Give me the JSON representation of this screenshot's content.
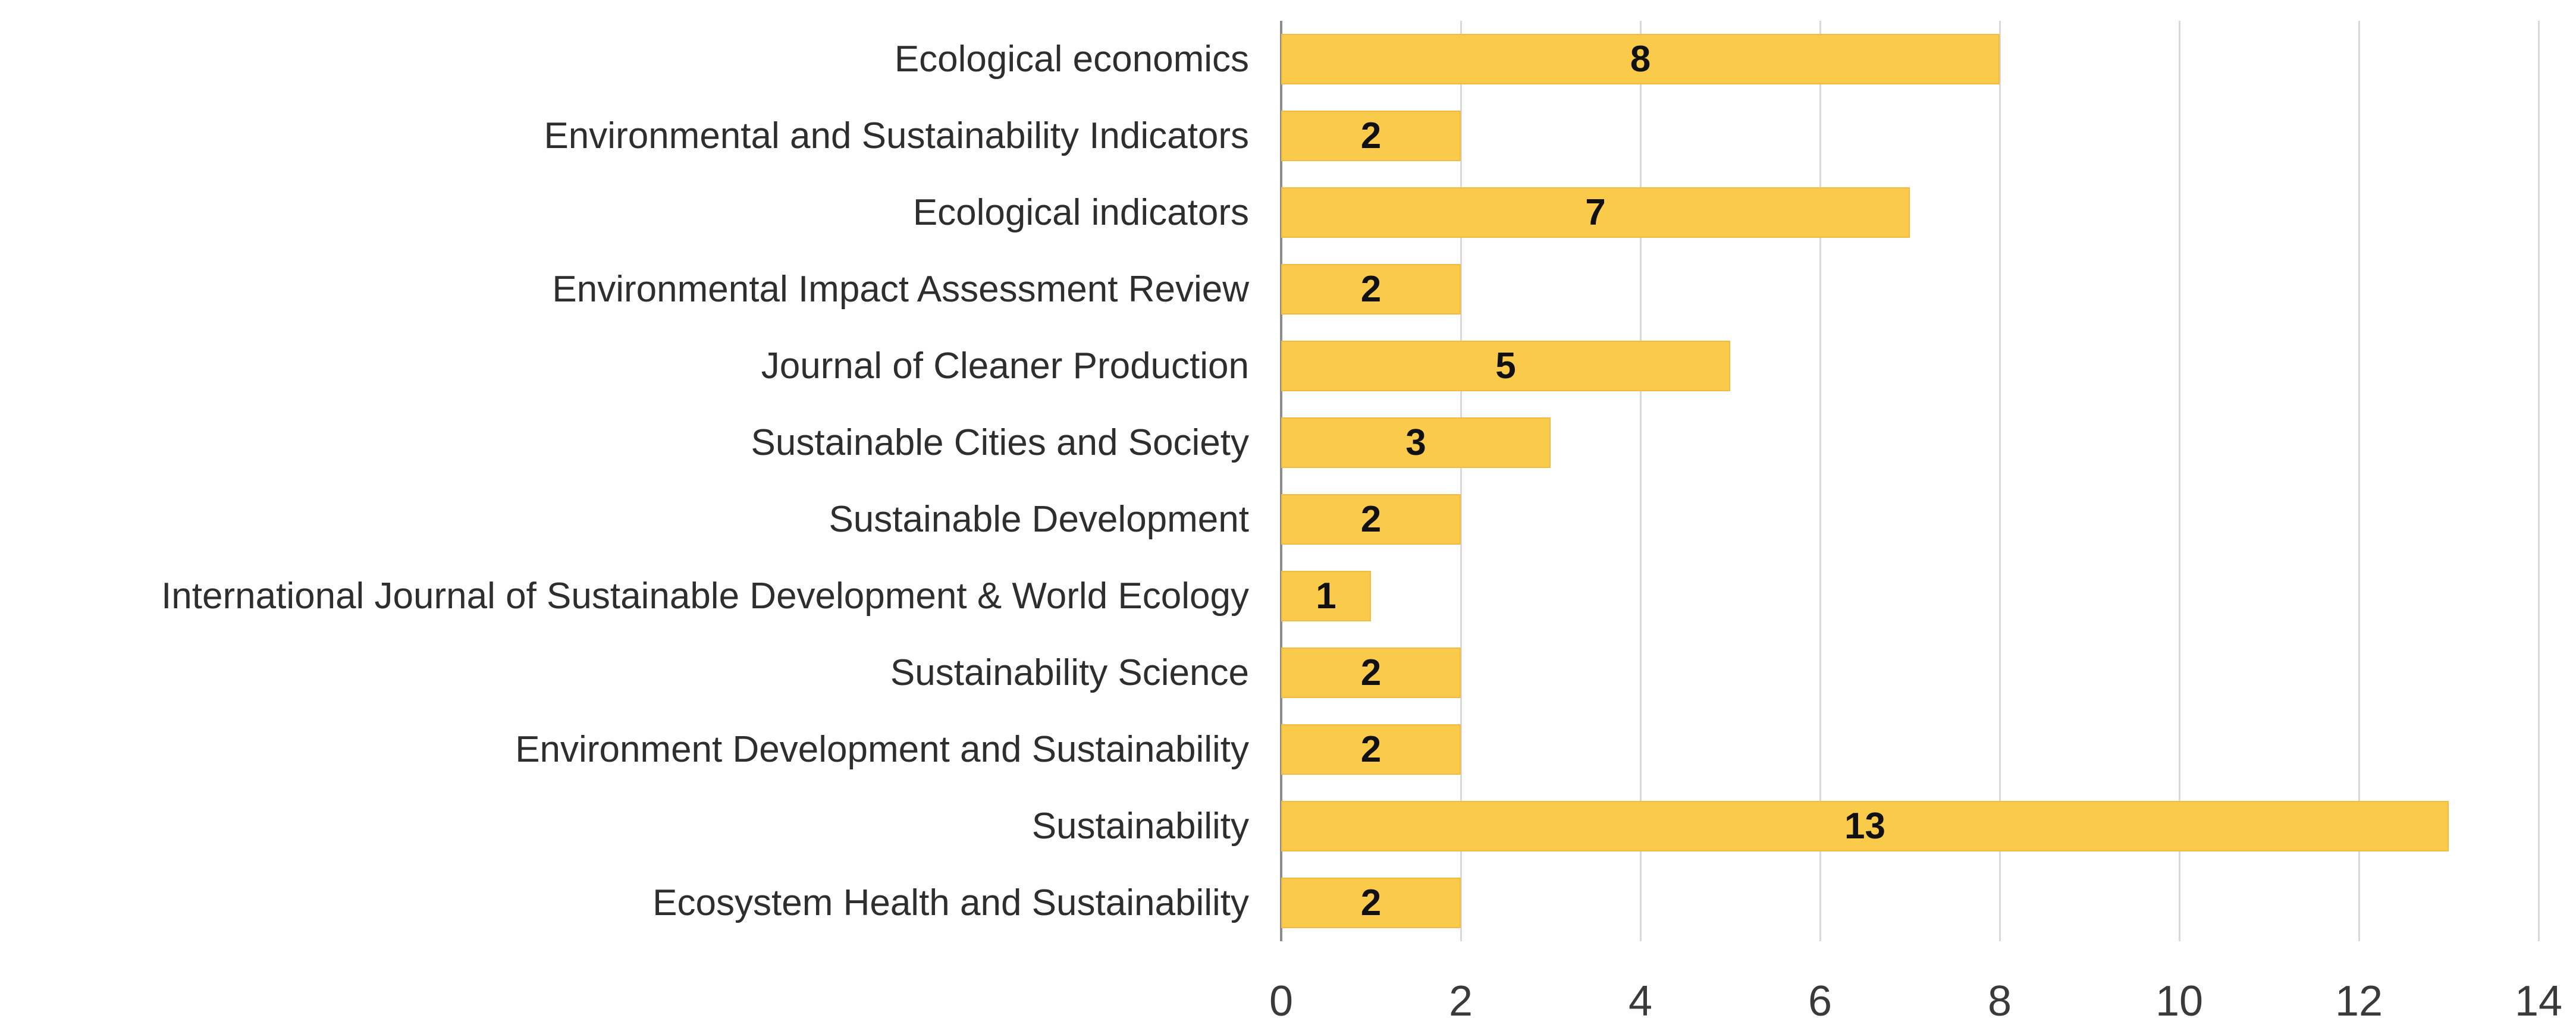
{
  "chart_data": {
    "type": "bar",
    "orientation": "horizontal",
    "title": "",
    "xlabel": "",
    "ylabel": "",
    "categories": [
      "Ecological economics",
      "Environmental and Sustainability Indicators",
      "Ecological indicators",
      "Environmental Impact Assessment Review",
      "Journal of Cleaner Production",
      "Sustainable Cities and Society",
      "Sustainable Development",
      "International Journal of Sustainable Development & World Ecology",
      "Sustainability Science",
      "Environment Development and Sustainability",
      "Sustainability",
      "Ecosystem Health and Sustainability"
    ],
    "values": [
      8,
      2,
      7,
      2,
      5,
      3,
      2,
      1,
      2,
      2,
      13,
      2
    ],
    "value_labels": [
      "8",
      "2",
      "7",
      "2",
      "5",
      "3",
      "2",
      "1",
      "2",
      "2",
      "13",
      "2"
    ],
    "value_labels_position": "center",
    "xlim": [
      0,
      14
    ],
    "x_ticks": [
      0,
      2,
      4,
      6,
      8,
      10,
      12,
      14
    ],
    "x_tick_labels": [
      "0",
      "2",
      "4",
      "6",
      "8",
      "10",
      "12",
      "14"
    ],
    "grid": true,
    "legend": false,
    "colors": {
      "bar_fill": "#facb4b",
      "bar_border": "#f3ba41",
      "gridline": "#d9d9d9",
      "zero_axis_line": "#8c8c8c",
      "category_text": "#2e2e2e",
      "tick_text": "#3a3a3a",
      "value_label_text": "#111111",
      "background": "#ffffff"
    }
  }
}
